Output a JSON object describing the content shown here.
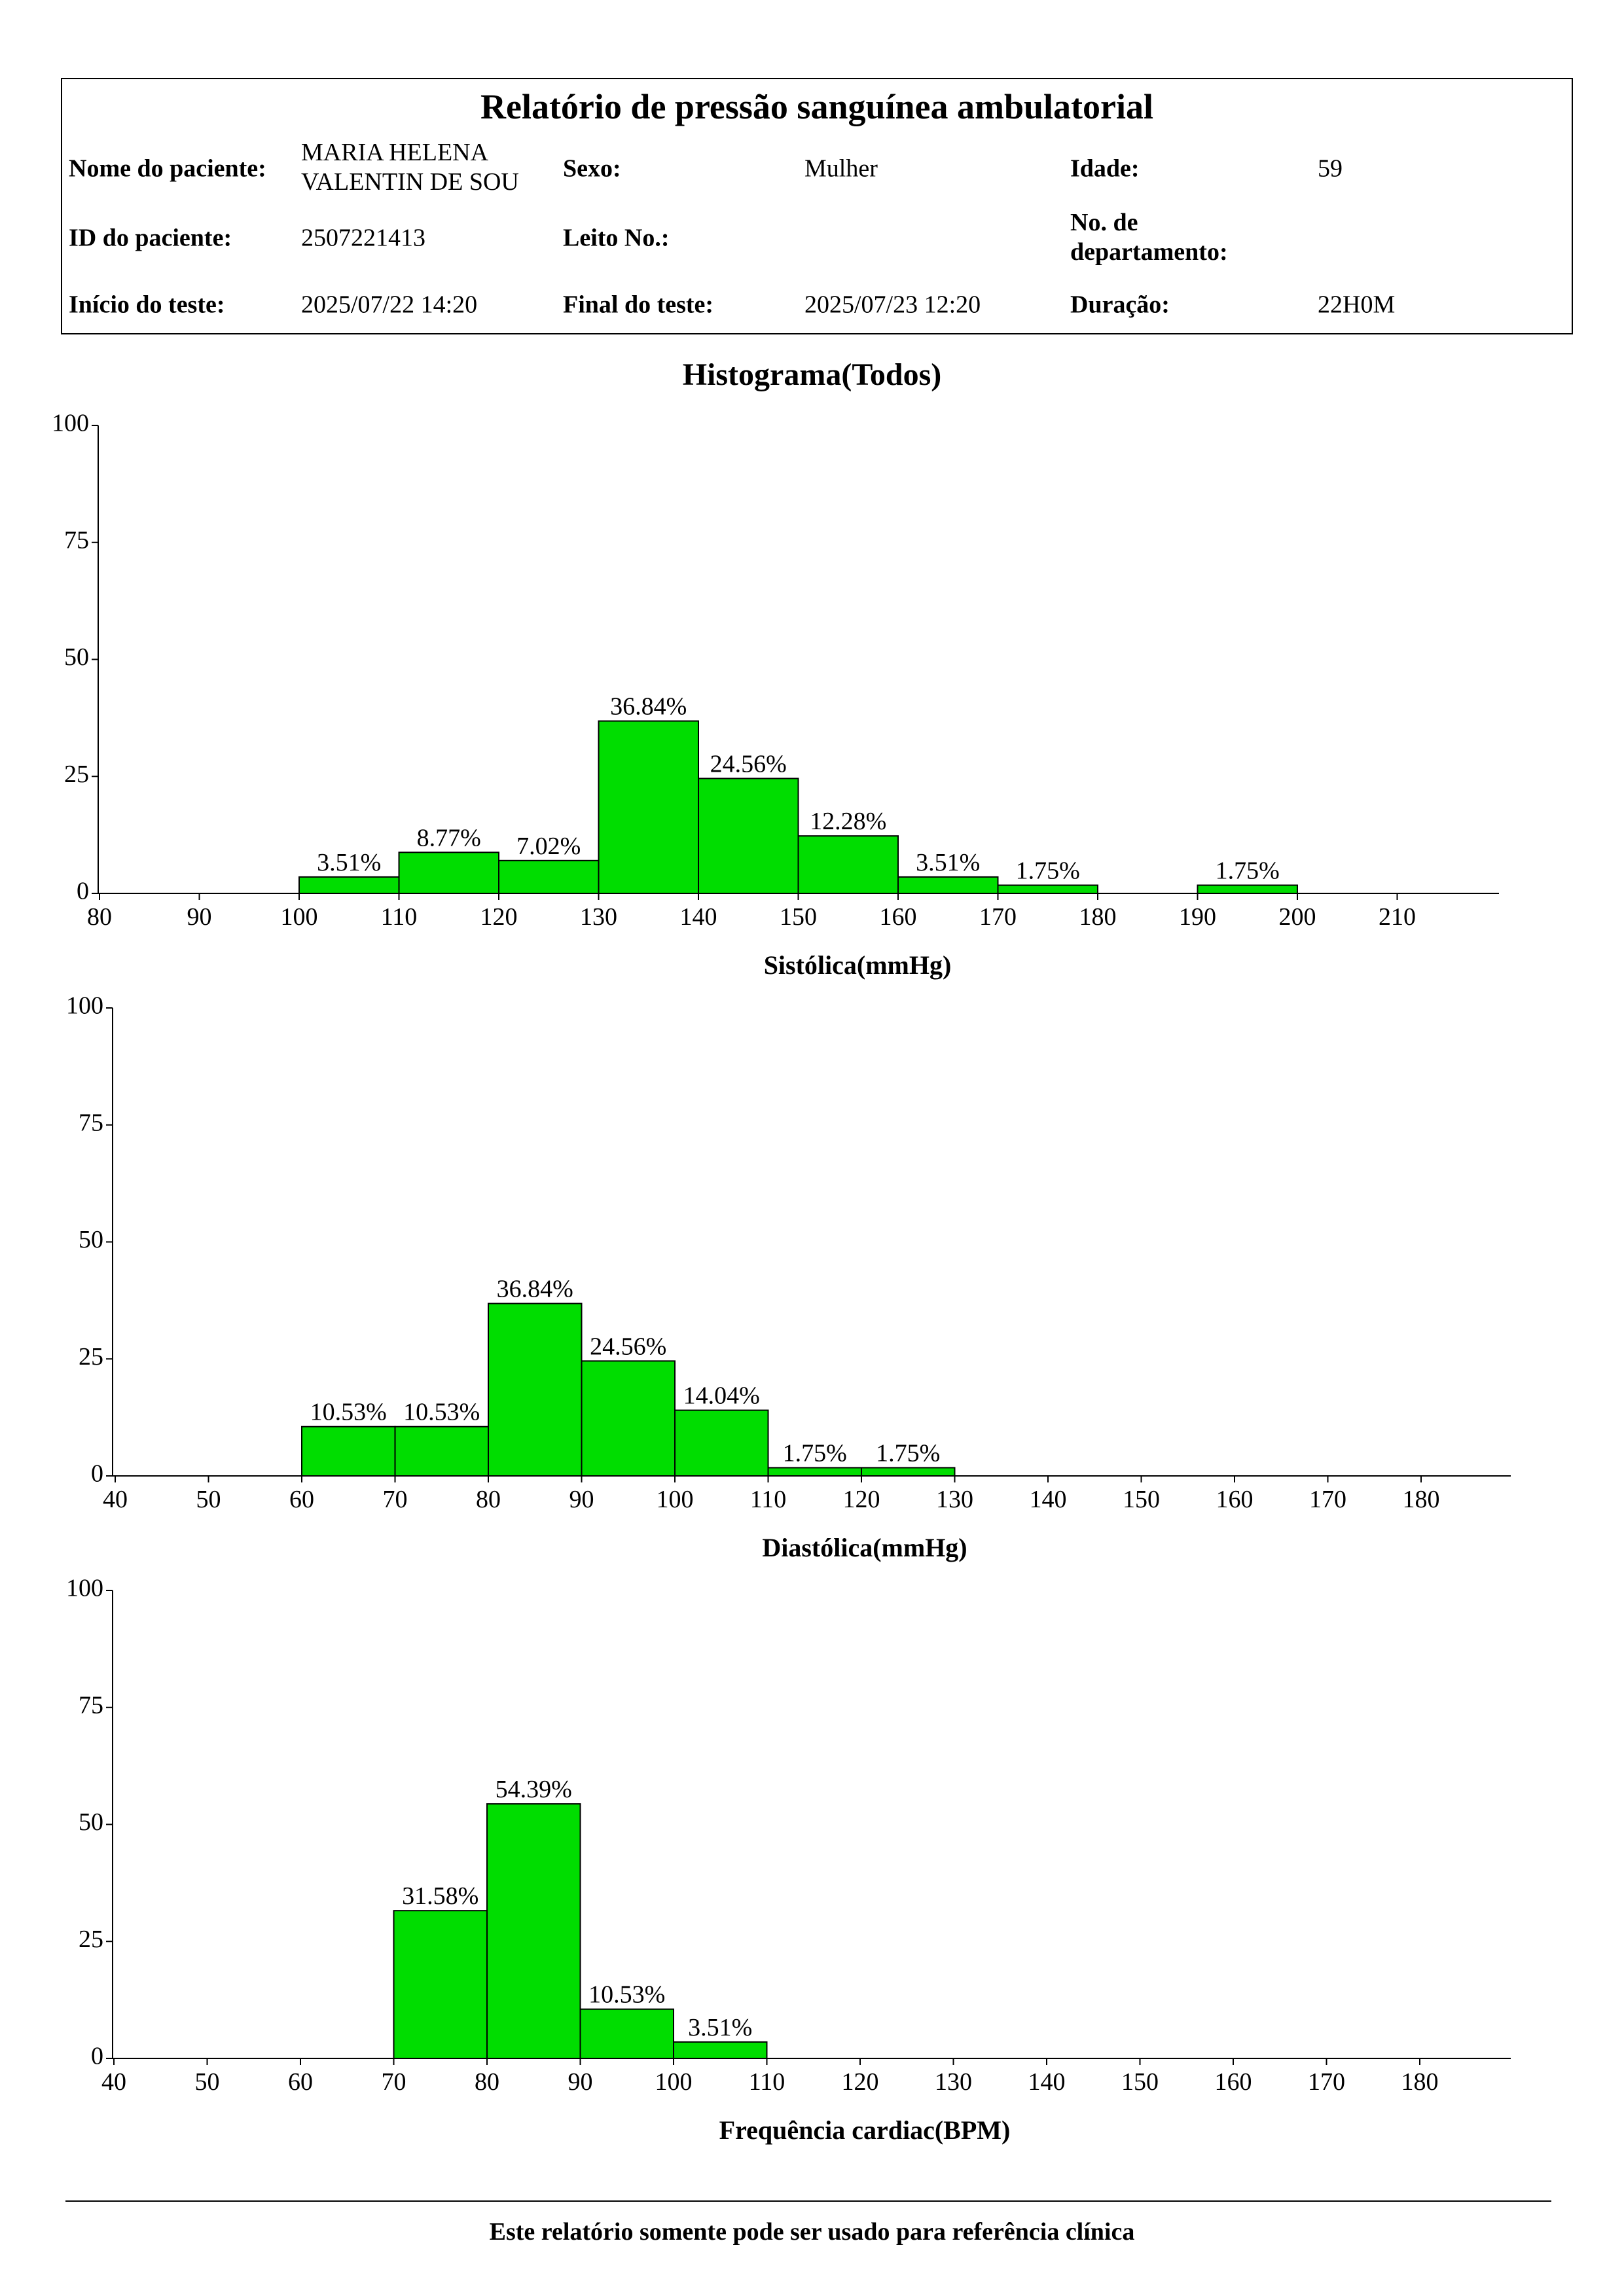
{
  "report": {
    "title": "Relatório de pressão sanguínea ambulatorial",
    "patient_name_label": "Nome do paciente:",
    "patient_name_line1": "MARIA HELENA",
    "patient_name_line2": "VALENTIN  DE SOU",
    "sex_label": "Sexo:",
    "sex_value": "Mulher",
    "age_label": "Idade:",
    "age_value": "59",
    "patient_id_label": "ID do paciente:",
    "patient_id_value": "2507221413",
    "bed_label": "Leito No.:",
    "bed_value": "",
    "dept_label_line1": "No. de",
    "dept_label_line2": "departamento:",
    "dept_value": "",
    "start_label": "Início do teste:",
    "start_value": "2025/07/22 14:20",
    "end_label": "Final do teste:",
    "end_value": "2025/07/23 12:20",
    "duration_label": "Duração:",
    "duration_value": "22H0M"
  },
  "histogram_title": "Histograma(Todos)",
  "footer": "Este relatório somente pode ser usado para referência clínica",
  "colors": {
    "bar_fill": "#00dd00",
    "bar_stroke": "#000000"
  },
  "chart_data": [
    {
      "type": "bar",
      "xlabel": "Sistólica(mmHg)",
      "ylabel": "",
      "x_ticks": [
        "80",
        "90",
        "100",
        "110",
        "120",
        "130",
        "140",
        "150",
        "160",
        "170",
        "180",
        "190",
        "200",
        "210"
      ],
      "y_ticks": [
        "0",
        "25",
        "50",
        "75",
        "100"
      ],
      "xlim": [
        80,
        220
      ],
      "ylim": [
        0,
        100
      ],
      "bins": [
        {
          "from": 100,
          "to": 110,
          "value": 3.51,
          "label": "3.51%"
        },
        {
          "from": 110,
          "to": 120,
          "value": 8.77,
          "label": "8.77%"
        },
        {
          "from": 120,
          "to": 130,
          "value": 7.02,
          "label": "7.02%"
        },
        {
          "from": 130,
          "to": 140,
          "value": 36.84,
          "label": "36.84%"
        },
        {
          "from": 140,
          "to": 150,
          "value": 24.56,
          "label": "24.56%"
        },
        {
          "from": 150,
          "to": 160,
          "value": 12.28,
          "label": "12.28%"
        },
        {
          "from": 160,
          "to": 170,
          "value": 3.51,
          "label": "3.51%"
        },
        {
          "from": 170,
          "to": 180,
          "value": 1.75,
          "label": "1.75%"
        },
        {
          "from": 190,
          "to": 200,
          "value": 1.75,
          "label": "1.75%"
        }
      ]
    },
    {
      "type": "bar",
      "xlabel": "Diastólica(mmHg)",
      "ylabel": "",
      "x_ticks": [
        "40",
        "50",
        "60",
        "70",
        "80",
        "90",
        "100",
        "110",
        "120",
        "130",
        "140",
        "150",
        "160",
        "170",
        "180"
      ],
      "y_ticks": [
        "0",
        "25",
        "50",
        "75",
        "100"
      ],
      "xlim": [
        40,
        190
      ],
      "ylim": [
        0,
        100
      ],
      "bins": [
        {
          "from": 60,
          "to": 70,
          "value": 10.53,
          "label": "10.53%"
        },
        {
          "from": 70,
          "to": 80,
          "value": 10.53,
          "label": "10.53%"
        },
        {
          "from": 80,
          "to": 90,
          "value": 36.84,
          "label": "36.84%"
        },
        {
          "from": 90,
          "to": 100,
          "value": 24.56,
          "label": "24.56%"
        },
        {
          "from": 100,
          "to": 110,
          "value": 14.04,
          "label": "14.04%"
        },
        {
          "from": 110,
          "to": 120,
          "value": 1.75,
          "label": "1.75%"
        },
        {
          "from": 120,
          "to": 130,
          "value": 1.75,
          "label": "1.75%"
        }
      ]
    },
    {
      "type": "bar",
      "xlabel": "Frequência cardiac(BPM)",
      "ylabel": "",
      "x_ticks": [
        "40",
        "50",
        "60",
        "70",
        "80",
        "90",
        "100",
        "110",
        "120",
        "130",
        "140",
        "150",
        "160",
        "170",
        "180"
      ],
      "y_ticks": [
        "0",
        "25",
        "50",
        "75",
        "100"
      ],
      "xlim": [
        40,
        190
      ],
      "ylim": [
        0,
        100
      ],
      "bins": [
        {
          "from": 70,
          "to": 80,
          "value": 31.58,
          "label": "31.58%"
        },
        {
          "from": 80,
          "to": 90,
          "value": 54.39,
          "label": "54.39%"
        },
        {
          "from": 90,
          "to": 100,
          "value": 10.53,
          "label": "10.53%"
        },
        {
          "from": 100,
          "to": 110,
          "value": 3.51,
          "label": "3.51%"
        }
      ]
    }
  ]
}
